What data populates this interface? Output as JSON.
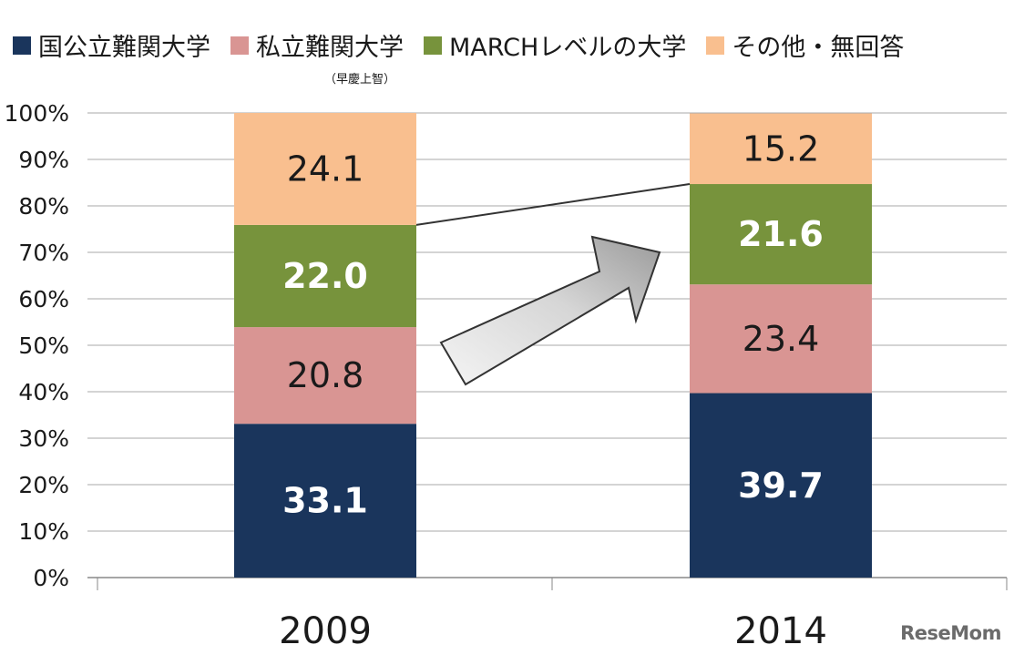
{
  "legend": {
    "subnote": "（早慶上智）"
  },
  "watermark": "ReseMom",
  "colors": {
    "national_public": "#1a355c",
    "private_difficult": "#d99593",
    "march": "#77933c",
    "other": "#f9bf8f",
    "grid": "#aaaaaa",
    "axis": "#888888"
  },
  "chart_data": {
    "type": "bar",
    "stacked": true,
    "categories": [
      "2009",
      "2014"
    ],
    "series": [
      {
        "name": "国公立難関大学",
        "values": [
          33.1,
          39.7
        ],
        "color": "#1a355c",
        "label_color": "#ffffff",
        "label_bold": true
      },
      {
        "name": "私立難関大学",
        "values": [
          20.8,
          23.4
        ],
        "color": "#d99593",
        "label_color": "#1a1a1a",
        "label_bold": false
      },
      {
        "name": "MARCHレベルの大学",
        "values": [
          22.0,
          21.6
        ],
        "color": "#77933c",
        "label_color": "#ffffff",
        "label_bold": true
      },
      {
        "name": "その他・無回答",
        "values": [
          24.1,
          15.2
        ],
        "color": "#f9bf8f",
        "label_color": "#1a1a1a",
        "label_bold": false
      }
    ],
    "data_labels": [
      [
        "33.1",
        "39.7"
      ],
      [
        "20.8",
        "23.4"
      ],
      [
        "22.0",
        "21.6"
      ],
      [
        "24.1",
        "15.2"
      ]
    ],
    "y_ticks": [
      "0%",
      "10%",
      "20%",
      "30%",
      "40%",
      "50%",
      "60%",
      "70%",
      "80%",
      "90%",
      "100%"
    ],
    "ylim": [
      0,
      100
    ],
    "grid": true,
    "legend_position": "top",
    "title": "",
    "xlabel": "",
    "ylabel": ""
  }
}
